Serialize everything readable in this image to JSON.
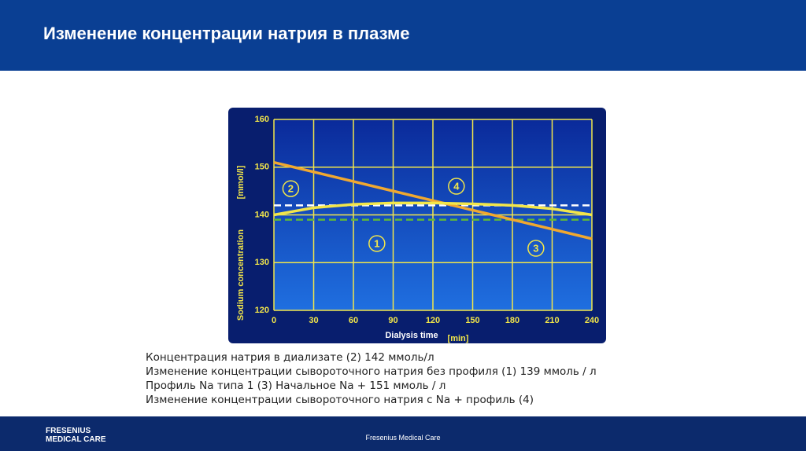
{
  "header": {
    "title": "Изменение концентрации натрия в плазме"
  },
  "chart_data": {
    "type": "line",
    "ylabel": "Sodium concentration",
    "yunit": "[mmol/l]",
    "xlabel": "Dialysis time",
    "xunit": "[min]",
    "x": [
      0,
      30,
      60,
      90,
      120,
      150,
      180,
      210,
      240
    ],
    "xlim": [
      0,
      240
    ],
    "xticks": [
      0,
      30,
      60,
      90,
      120,
      150,
      180,
      210,
      240
    ],
    "ylim": [
      120,
      160
    ],
    "yticks": [
      120,
      130,
      140,
      150,
      160
    ],
    "grid": true,
    "series": [
      {
        "name": "1",
        "color": "#5fb83a",
        "dashed": true,
        "values": [
          139,
          139,
          139,
          139,
          139,
          139,
          139,
          139,
          139
        ]
      },
      {
        "name": "2",
        "color": "#ffffff",
        "dashed": true,
        "values": [
          142,
          142,
          142,
          142,
          142,
          142,
          142,
          142,
          142
        ]
      },
      {
        "name": "3",
        "color": "#f0a830",
        "dashed": false,
        "values": [
          151,
          149,
          147,
          145,
          143,
          141,
          139,
          137,
          135
        ]
      },
      {
        "name": "4",
        "color": "#f2e64a",
        "dashed": false,
        "values": [
          140,
          141.5,
          142.2,
          142.5,
          142.5,
          142.3,
          142,
          141.3,
          140
        ]
      }
    ]
  },
  "caption": [
    "Концентрация натрия в диализате (2) 142 ммоль/л",
    "Изменение концентрации сывороточного натрия без профиля (1) 139 ммоль / л",
    "Профиль Na типа 1 (3) Начальное Na + 151 ммоль / л",
    "Изменение концентрации сывороточного натрия с Na + профиль (4)"
  ],
  "footer": {
    "logo": [
      "FRESENIUS",
      "MEDICAL CARE"
    ],
    "company": "Fresenius Medical Care"
  }
}
